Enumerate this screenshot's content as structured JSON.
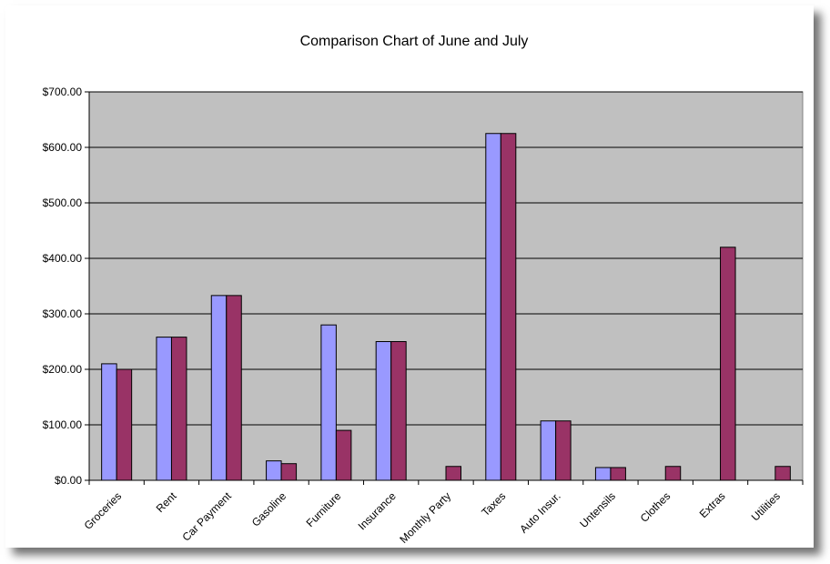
{
  "chart_data": {
    "type": "bar",
    "title": "Comparison Chart of June and July",
    "xlabel": "",
    "ylabel": "",
    "ylim": [
      0,
      700
    ],
    "yticks": [
      "$0.00",
      "$100.00",
      "$200.00",
      "$300.00",
      "$400.00",
      "$500.00",
      "$600.00",
      "$700.00"
    ],
    "categories": [
      "Groceries",
      "Rent",
      "Car Payment",
      "Gasoline",
      "Furniture",
      "Insurance",
      "Monthly Party",
      "Taxes",
      "Auto Insur.",
      "Untensils",
      "Clothes",
      "Extras",
      "Utilities"
    ],
    "series": [
      {
        "values": [
          210,
          258,
          333,
          35,
          280,
          250,
          0,
          625,
          107,
          23,
          0,
          0,
          0
        ],
        "color": "#9999ff"
      },
      {
        "values": [
          200,
          258,
          333,
          30,
          90,
          250,
          25,
          625,
          107,
          23,
          25,
          420,
          25
        ],
        "color": "#993366"
      }
    ],
    "grid": true,
    "plot_background": "#c0c0c0",
    "legend": "none"
  }
}
